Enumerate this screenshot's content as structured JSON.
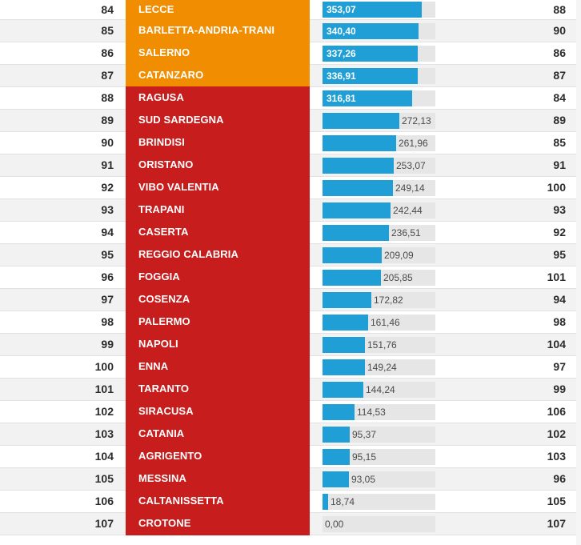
{
  "colors": {
    "orange_zone": "#f18d00",
    "red_zone": "#c71d1d",
    "bar": "#1f9fd5",
    "bar_track": "#e6e6e6"
  },
  "chart_data": {
    "type": "bar",
    "bar_max": 400,
    "rows": [
      {
        "rank": "84",
        "name": "LECCE",
        "value": 353.07,
        "label": "353,07",
        "prev": "88",
        "zone": "orange"
      },
      {
        "rank": "85",
        "name": "BARLETTA-ANDRIA-TRANI",
        "value": 340.4,
        "label": "340,40",
        "prev": "90",
        "zone": "orange"
      },
      {
        "rank": "86",
        "name": "SALERNO",
        "value": 337.26,
        "label": "337,26",
        "prev": "86",
        "zone": "orange"
      },
      {
        "rank": "87",
        "name": "CATANZARO",
        "value": 336.91,
        "label": "336,91",
        "prev": "87",
        "zone": "orange"
      },
      {
        "rank": "88",
        "name": "RAGUSA",
        "value": 316.81,
        "label": "316,81",
        "prev": "84",
        "zone": "red"
      },
      {
        "rank": "89",
        "name": "SUD SARDEGNA",
        "value": 272.13,
        "label": "272,13",
        "prev": "89",
        "zone": "red"
      },
      {
        "rank": "90",
        "name": "BRINDISI",
        "value": 261.96,
        "label": "261,96",
        "prev": "85",
        "zone": "red"
      },
      {
        "rank": "91",
        "name": "ORISTANO",
        "value": 253.07,
        "label": "253,07",
        "prev": "91",
        "zone": "red"
      },
      {
        "rank": "92",
        "name": "VIBO VALENTIA",
        "value": 249.14,
        "label": "249,14",
        "prev": "100",
        "zone": "red"
      },
      {
        "rank": "93",
        "name": "TRAPANI",
        "value": 242.44,
        "label": "242,44",
        "prev": "93",
        "zone": "red"
      },
      {
        "rank": "94",
        "name": "CASERTA",
        "value": 236.51,
        "label": "236,51",
        "prev": "92",
        "zone": "red"
      },
      {
        "rank": "95",
        "name": "REGGIO CALABRIA",
        "value": 209.09,
        "label": "209,09",
        "prev": "95",
        "zone": "red"
      },
      {
        "rank": "96",
        "name": "FOGGIA",
        "value": 205.85,
        "label": "205,85",
        "prev": "101",
        "zone": "red"
      },
      {
        "rank": "97",
        "name": "COSENZA",
        "value": 172.82,
        "label": "172,82",
        "prev": "94",
        "zone": "red"
      },
      {
        "rank": "98",
        "name": "PALERMO",
        "value": 161.46,
        "label": "161,46",
        "prev": "98",
        "zone": "red"
      },
      {
        "rank": "99",
        "name": "NAPOLI",
        "value": 151.76,
        "label": "151,76",
        "prev": "104",
        "zone": "red"
      },
      {
        "rank": "100",
        "name": "ENNA",
        "value": 149.24,
        "label": "149,24",
        "prev": "97",
        "zone": "red"
      },
      {
        "rank": "101",
        "name": "TARANTO",
        "value": 144.24,
        "label": "144,24",
        "prev": "99",
        "zone": "red"
      },
      {
        "rank": "102",
        "name": "SIRACUSA",
        "value": 114.53,
        "label": "114,53",
        "prev": "106",
        "zone": "red"
      },
      {
        "rank": "103",
        "name": "CATANIA",
        "value": 95.37,
        "label": "95,37",
        "prev": "102",
        "zone": "red"
      },
      {
        "rank": "104",
        "name": "AGRIGENTO",
        "value": 95.15,
        "label": "95,15",
        "prev": "103",
        "zone": "red"
      },
      {
        "rank": "105",
        "name": "MESSINA",
        "value": 93.05,
        "label": "93,05",
        "prev": "96",
        "zone": "red"
      },
      {
        "rank": "106",
        "name": "CALTANISSETTA",
        "value": 18.74,
        "label": "18,74",
        "prev": "105",
        "zone": "red"
      },
      {
        "rank": "107",
        "name": "CROTONE",
        "value": 0.0,
        "label": "0,00",
        "prev": "107",
        "zone": "red"
      }
    ]
  }
}
